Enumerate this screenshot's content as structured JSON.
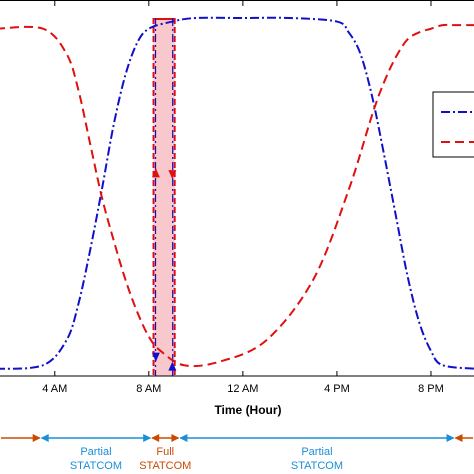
{
  "chart_data": {
    "type": "line",
    "xlabel": "Time (Hour)",
    "xlim": [
      1.5,
      22.0
    ],
    "ylim": [
      0,
      1
    ],
    "grid": false,
    "legend_placement": "right",
    "x_ticks": [
      {
        "value": 4,
        "label": "4 AM"
      },
      {
        "value": 8,
        "label": "8 AM"
      },
      {
        "value": 12,
        "label": "12 AM"
      },
      {
        "value": 16,
        "label": "4 PM"
      },
      {
        "value": 20,
        "label": "8 PM"
      }
    ],
    "series": [
      {
        "style": "dashdot",
        "color": "#1010cc",
        "x": [
          1.5,
          3.5,
          4.5,
          5.0,
          5.5,
          6.0,
          6.5,
          7.0,
          7.5,
          8.0,
          9.0,
          10.0,
          12.0,
          14.0,
          16.0,
          16.5,
          17.0,
          17.5,
          18.0,
          18.5,
          19.0,
          19.5,
          20.0,
          20.5,
          22.0
        ],
        "values": [
          0.02,
          0.03,
          0.1,
          0.2,
          0.35,
          0.52,
          0.7,
          0.84,
          0.93,
          0.97,
          0.99,
          1.0,
          1.0,
          1.0,
          0.99,
          0.96,
          0.9,
          0.78,
          0.62,
          0.45,
          0.28,
          0.15,
          0.07,
          0.03,
          0.02
        ]
      },
      {
        "style": "dashed",
        "color": "#e01010",
        "x": [
          1.5,
          3.5,
          4.5,
          5.0,
          5.5,
          6.0,
          6.5,
          7.0,
          7.5,
          8.0,
          8.5,
          9.5,
          11.0,
          13.0,
          15.0,
          16.5,
          17.5,
          18.0,
          18.5,
          19.0,
          19.5,
          20.0,
          20.5,
          21.0,
          22.0
        ],
        "values": [
          0.97,
          0.97,
          0.9,
          0.8,
          0.65,
          0.5,
          0.38,
          0.27,
          0.18,
          0.11,
          0.07,
          0.03,
          0.04,
          0.1,
          0.27,
          0.52,
          0.73,
          0.82,
          0.89,
          0.94,
          0.96,
          0.97,
          0.98,
          0.98,
          0.98
        ]
      }
    ],
    "highlight_band": {
      "x_start": 8.2,
      "x_end": 9.1,
      "color": "#f8c8cc"
    },
    "switch_arrows": [
      {
        "x": 8.3,
        "direction": "up",
        "color": "#e01010"
      },
      {
        "x": 8.3,
        "direction": "down",
        "color": "#1010cc"
      },
      {
        "x": 9.0,
        "direction": "down",
        "color": "#e01010"
      },
      {
        "x": 9.0,
        "direction": "up",
        "color": "#1010cc"
      }
    ],
    "modes": [
      {
        "x_start": 1.5,
        "x_end": 3.4,
        "label_lines": [],
        "color": "#cc4a00"
      },
      {
        "x_start": 3.4,
        "x_end": 8.1,
        "label_lines": [
          "Partial",
          "STATCOM"
        ],
        "color": "#1a8fd8"
      },
      {
        "x_start": 8.1,
        "x_end": 9.3,
        "label_lines": [
          "Full",
          "STATCOM"
        ],
        "color": "#cc4a00"
      },
      {
        "x_start": 9.3,
        "x_end": 21.0,
        "label_lines": [
          "Partial",
          "STATCOM"
        ],
        "color": "#1a8fd8"
      },
      {
        "x_start": 21.0,
        "x_end": 22.0,
        "label_lines": [],
        "color": "#cc4a00"
      }
    ]
  }
}
